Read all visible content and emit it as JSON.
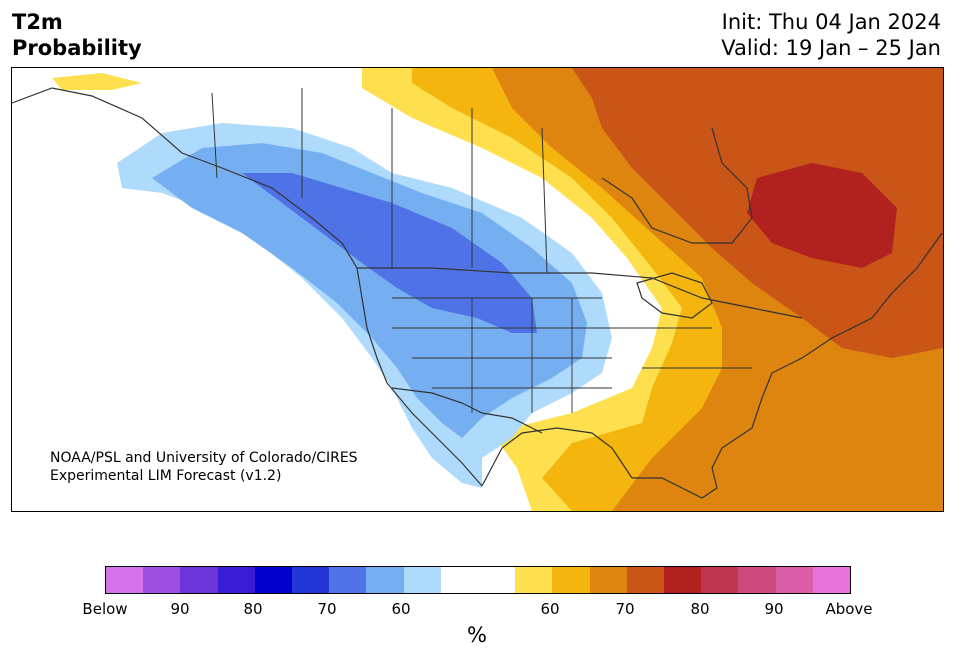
{
  "title": {
    "variable": "T2m",
    "product": "Probability",
    "init": "Init: Thu 04 Jan 2024",
    "valid": "Valid: 19 Jan – 25 Jan"
  },
  "credit": {
    "line1": "NOAA/PSL and University of Colorado/CIRES",
    "line2": "Experimental LIM Forecast (v1.2)"
  },
  "colorbar": {
    "colors": [
      "#d574ea",
      "#9d4fe0",
      "#6d36db",
      "#3a1cd5",
      "#0000cc",
      "#2336d8",
      "#4f73e6",
      "#76aff1",
      "#aedbfb",
      "#ffffff",
      "#ffffff",
      "#fee04e",
      "#f4b50e",
      "#dd850f",
      "#c95517",
      "#b0211f",
      "#be3650",
      "#cd4a7c",
      "#da5ea8",
      "#e774d9"
    ],
    "ticks": [
      {
        "label": "Below"
      },
      {
        "label": "90"
      },
      {
        "label": "80"
      },
      {
        "label": "70"
      },
      {
        "label": "60"
      },
      {
        "label": "60"
      },
      {
        "label": "70"
      },
      {
        "label": "80"
      },
      {
        "label": "90"
      },
      {
        "label": "Above"
      }
    ],
    "unit": "%"
  }
}
